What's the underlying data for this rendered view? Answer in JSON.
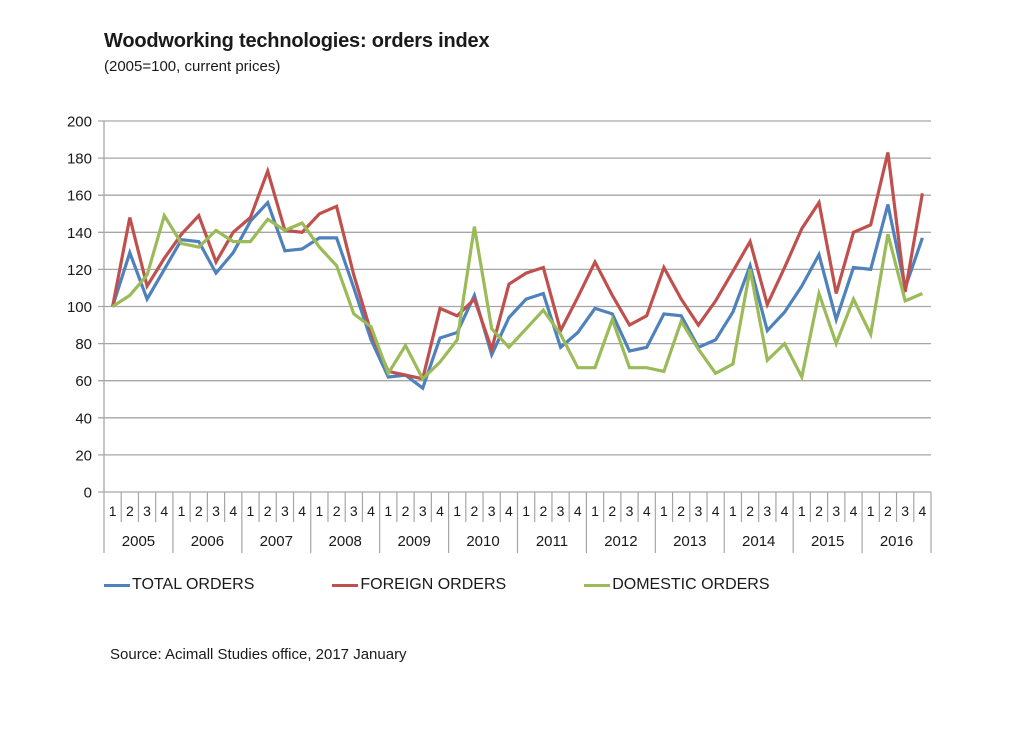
{
  "chart_data": {
    "type": "line",
    "title": "Woodworking technologies: orders index",
    "subtitle": "(2005=100, current prices)",
    "xlabel": "",
    "ylabel": "",
    "ylim": [
      0,
      200
    ],
    "yticks": [
      0,
      20,
      40,
      60,
      80,
      100,
      120,
      140,
      160,
      180,
      200
    ],
    "grid": true,
    "legend_position": "bottom",
    "years": [
      "2005",
      "2006",
      "2007",
      "2008",
      "2009",
      "2010",
      "2011",
      "2012",
      "2013",
      "2014",
      "2015",
      "2016"
    ],
    "quarters": [
      "1",
      "2",
      "3",
      "4"
    ],
    "series": [
      {
        "name": "TOTAL ORDERS",
        "color": "#4f81bd",
        "values": [
          100,
          129,
          104,
          120,
          136,
          135,
          118,
          129,
          146,
          156,
          130,
          131,
          137,
          137,
          110,
          82,
          62,
          63,
          56,
          83,
          86,
          106,
          74,
          94,
          104,
          107,
          78,
          86,
          99,
          96,
          76,
          78,
          96,
          95,
          78,
          82,
          97,
          122,
          87,
          97,
          111,
          128,
          93,
          121,
          120,
          155,
          110,
          137
        ]
      },
      {
        "name": "FOREIGN ORDERS",
        "color": "#c0504d",
        "values": [
          100,
          148,
          111,
          126,
          139,
          149,
          124,
          140,
          148,
          173,
          141,
          140,
          150,
          154,
          117,
          86,
          65,
          63,
          61,
          99,
          95,
          104,
          77,
          112,
          118,
          121,
          87,
          105,
          124,
          106,
          90,
          95,
          121,
          104,
          90,
          103,
          119,
          135,
          101,
          121,
          142,
          156,
          107,
          140,
          144,
          183,
          108,
          161
        ]
      },
      {
        "name": "DOMESTIC ORDERS",
        "color": "#9bbb59",
        "values": [
          100,
          106,
          117,
          149,
          134,
          132,
          141,
          135,
          135,
          147,
          141,
          145,
          132,
          122,
          96,
          89,
          64,
          79,
          61,
          70,
          82,
          143,
          88,
          78,
          88,
          98,
          85,
          67,
          67,
          93,
          67,
          67,
          65,
          92,
          77,
          64,
          69,
          120,
          71,
          80,
          62,
          107,
          80,
          104,
          85,
          139,
          103,
          107
        ]
      }
    ]
  },
  "source": "Source: Acimall Studies office, 2017 January"
}
